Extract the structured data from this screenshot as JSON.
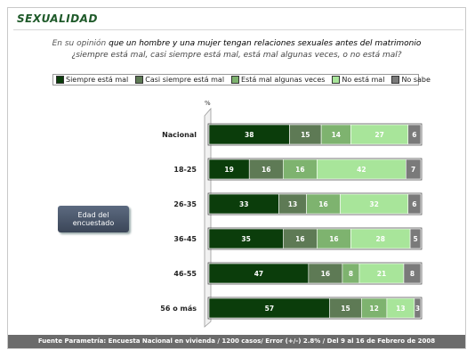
{
  "header": {
    "title": "SEXUALIDAD",
    "question_lead": "En su opinión",
    "question_strong": "que un hombre y una mujer tengan relaciones sexuales antes del matrimonio",
    "question_line2": "¿siempre está mal, casi siempre está mal, está mal algunas veces, o no está mal?"
  },
  "callout": {
    "line1": "Edad del",
    "line2": "encuestado"
  },
  "footer": {
    "text": "Fuente Parametría: Encuesta Nacional en vivienda / 1200 casos/ Error (+/-) 2.8% / Del 9 al 16 de Febrero de 2008"
  },
  "chart_data": {
    "type": "bar",
    "orientation": "horizontal",
    "stacked": true,
    "percent_symbol": "%",
    "categories": [
      "Nacional",
      "18-25",
      "26-35",
      "36-45",
      "46-55",
      "56 o más"
    ],
    "series": [
      {
        "name": "Siempre está mal",
        "color": "#0b3d0b",
        "values": [
          38,
          19,
          33,
          35,
          47,
          57
        ]
      },
      {
        "name": "Casi siempre está mal",
        "color": "#5e7a55",
        "values": [
          15,
          16,
          13,
          16,
          16,
          15
        ]
      },
      {
        "name": "Está mal algunas veces",
        "color": "#7eb36f",
        "values": [
          14,
          16,
          16,
          16,
          8,
          12
        ]
      },
      {
        "name": "No está mal",
        "color": "#a8e59a",
        "values": [
          27,
          42,
          32,
          28,
          21,
          13
        ]
      },
      {
        "name": "No sabe",
        "color": "#7a7a7a",
        "values": [
          6,
          7,
          6,
          5,
          8,
          3
        ]
      }
    ],
    "xlim": [
      0,
      100
    ],
    "legend": "top",
    "grid": false
  }
}
